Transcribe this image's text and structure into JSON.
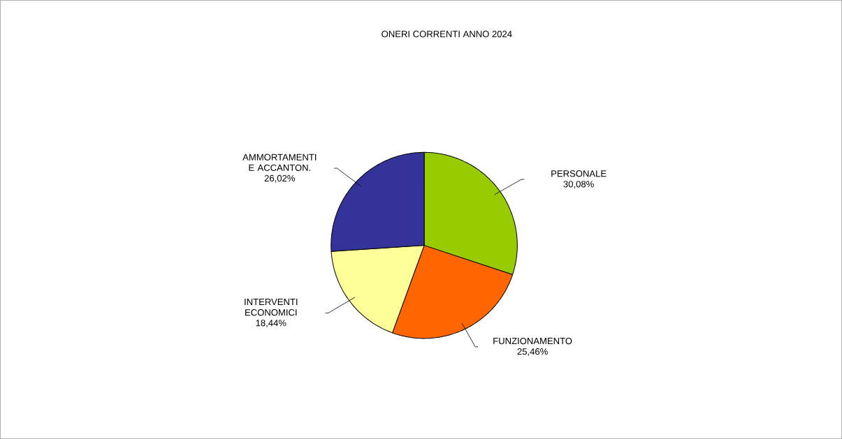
{
  "chart_data": {
    "type": "pie",
    "title": "ONERI CORRENTI ANNO 2024",
    "categories": [
      "PERSONALE",
      "FUNZIONAMENTO",
      "INTERVENTI ECONOMICI",
      "AMMORTAMENTI E ACCANTON."
    ],
    "values": [
      30.08,
      25.46,
      18.44,
      26.02
    ],
    "colors": [
      "#99cc00",
      "#ff6600",
      "#ffff99",
      "#333399"
    ],
    "value_labels": [
      "30,08%",
      "25,46%",
      "18,44%",
      "26,02%"
    ]
  }
}
